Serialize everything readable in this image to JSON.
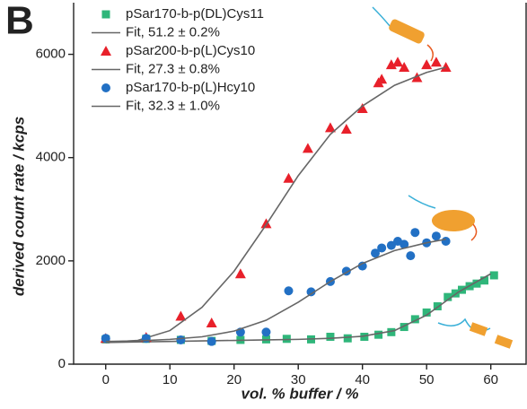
{
  "chart_data": {
    "type": "scatter",
    "panel_label": "B",
    "x_label": "vol. % buffer / %",
    "y_label": "derived count rate / kcps",
    "xlim": [
      -5,
      65.5
    ],
    "ylim": [
      0,
      7000
    ],
    "xticks": [
      0,
      10,
      20,
      30,
      40,
      50,
      60
    ],
    "yticks": [
      0,
      2000,
      4000,
      6000
    ],
    "legend": "upper left",
    "series": [
      {
        "name": "pSar170-b-p(DL)Cys11",
        "type": "scatter",
        "marker": "square",
        "color": "#2fb67a",
        "x": [
          0,
          6.3,
          11.7,
          16.5,
          21,
          25,
          28.2,
          32,
          35,
          37.7,
          40.3,
          42.5,
          44.5,
          46.5,
          48.2,
          50,
          51.7,
          53.3,
          54.5,
          55.5,
          56.7,
          57.8,
          59,
          60.5
        ],
        "values": [
          480,
          490,
          470,
          450,
          470,
          480,
          490,
          480,
          530,
          500,
          530,
          570,
          620,
          720,
          870,
          1000,
          1120,
          1300,
          1370,
          1440,
          1510,
          1560,
          1620,
          1720
        ]
      },
      {
        "name": "Fit, 51.2 ± 0.2%",
        "type": "line",
        "color": "#666666",
        "x": [
          0,
          5,
          10,
          15,
          20,
          25,
          30,
          35,
          40,
          45,
          50,
          55,
          60
        ],
        "values": [
          420,
          430,
          440,
          450,
          460,
          470,
          480,
          500,
          540,
          650,
          950,
          1400,
          1750
        ]
      },
      {
        "name": "pSar200-b-p(L)Cys10",
        "type": "scatter",
        "marker": "triangle",
        "color": "#e8202a",
        "x": [
          0,
          6.3,
          11.7,
          16.5,
          21,
          25,
          28.5,
          31.5,
          35,
          37.5,
          40,
          42.5,
          43,
          44.5,
          45.5,
          46.5,
          48.5,
          50,
          51.5,
          53
        ],
        "values": [
          500,
          520,
          930,
          800,
          1750,
          2720,
          3600,
          4180,
          4580,
          4550,
          4950,
          5450,
          5520,
          5800,
          5850,
          5750,
          5550,
          5800,
          5850,
          5750
        ]
      },
      {
        "name": "Fit, 27.3 ± 0.8%",
        "type": "line",
        "color": "#666666",
        "x": [
          0,
          5,
          10,
          15,
          20,
          25,
          30,
          35,
          40,
          45,
          50,
          53
        ],
        "values": [
          420,
          460,
          650,
          1100,
          1800,
          2700,
          3650,
          4450,
          5000,
          5400,
          5650,
          5750
        ]
      },
      {
        "name": "pSar170-b-p(L)Hcy10",
        "type": "scatter",
        "marker": "circle",
        "color": "#2270c4",
        "x": [
          0,
          6.3,
          11.7,
          16.5,
          21,
          25,
          28.5,
          32,
          35,
          37.5,
          40,
          42,
          43,
          44.5,
          45.5,
          46.5,
          47.5,
          48.2,
          50,
          51.5,
          53
        ],
        "values": [
          500,
          500,
          470,
          440,
          620,
          620,
          1420,
          1400,
          1600,
          1800,
          1900,
          2150,
          2250,
          2300,
          2380,
          2320,
          2100,
          2550,
          2350,
          2480,
          2380
        ]
      },
      {
        "name": "Fit, 32.3 ± 1.0%",
        "type": "line",
        "color": "#666666",
        "x": [
          0,
          5,
          10,
          15,
          20,
          25,
          30,
          35,
          40,
          45,
          50,
          53
        ],
        "values": [
          440,
          450,
          480,
          530,
          640,
          850,
          1200,
          1600,
          1950,
          2200,
          2350,
          2420
        ]
      }
    ]
  }
}
